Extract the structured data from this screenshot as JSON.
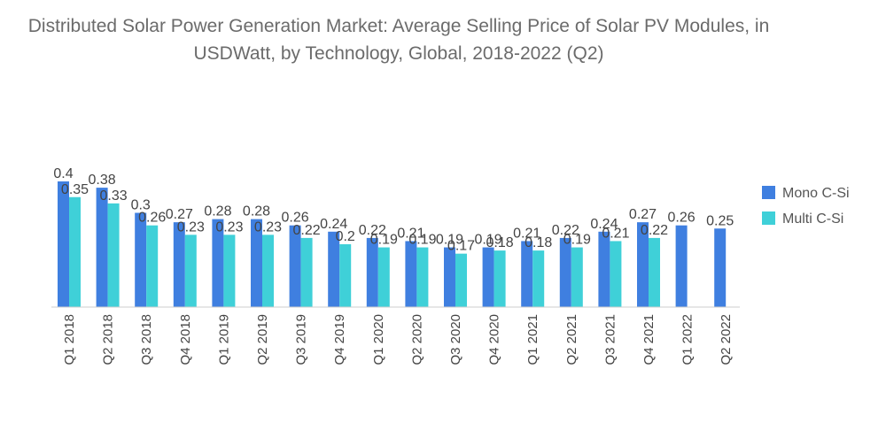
{
  "chart_data": {
    "type": "bar",
    "title": "Distributed Solar Power Generation Market: Average Selling Price of Solar PV Modules, in USDWatt, by Technology, Global, 2018-2022 (Q2)",
    "categories": [
      "Q1 2018",
      "Q2 2018",
      "Q3 2018",
      "Q4 2018",
      "Q1 2019",
      "Q2 2019",
      "Q3 2019",
      "Q4 2019",
      "Q1 2020",
      "Q2 2020",
      "Q3 2020",
      "Q4 2020",
      "Q1 2021",
      "Q2 2021",
      "Q3 2021",
      "Q4 2021",
      "Q1 2022",
      "Q2 2022"
    ],
    "series": [
      {
        "name": "Mono C-Si",
        "color": "#3f7fe0",
        "values": [
          0.4,
          0.38,
          0.3,
          0.27,
          0.28,
          0.28,
          0.26,
          0.24,
          0.22,
          0.21,
          0.19,
          0.19,
          0.21,
          0.22,
          0.24,
          0.27,
          0.26,
          0.25
        ]
      },
      {
        "name": "Multi C-Si",
        "color": "#3fd0d8",
        "values": [
          0.35,
          0.33,
          0.26,
          0.23,
          0.23,
          0.23,
          0.22,
          0.2,
          0.19,
          0.19,
          0.17,
          0.18,
          0.18,
          0.19,
          0.21,
          0.22,
          null,
          null
        ]
      }
    ],
    "ylim": [
      0,
      0.4
    ],
    "xlabel": "",
    "ylabel": "",
    "legend_position": "right",
    "grid": false
  }
}
